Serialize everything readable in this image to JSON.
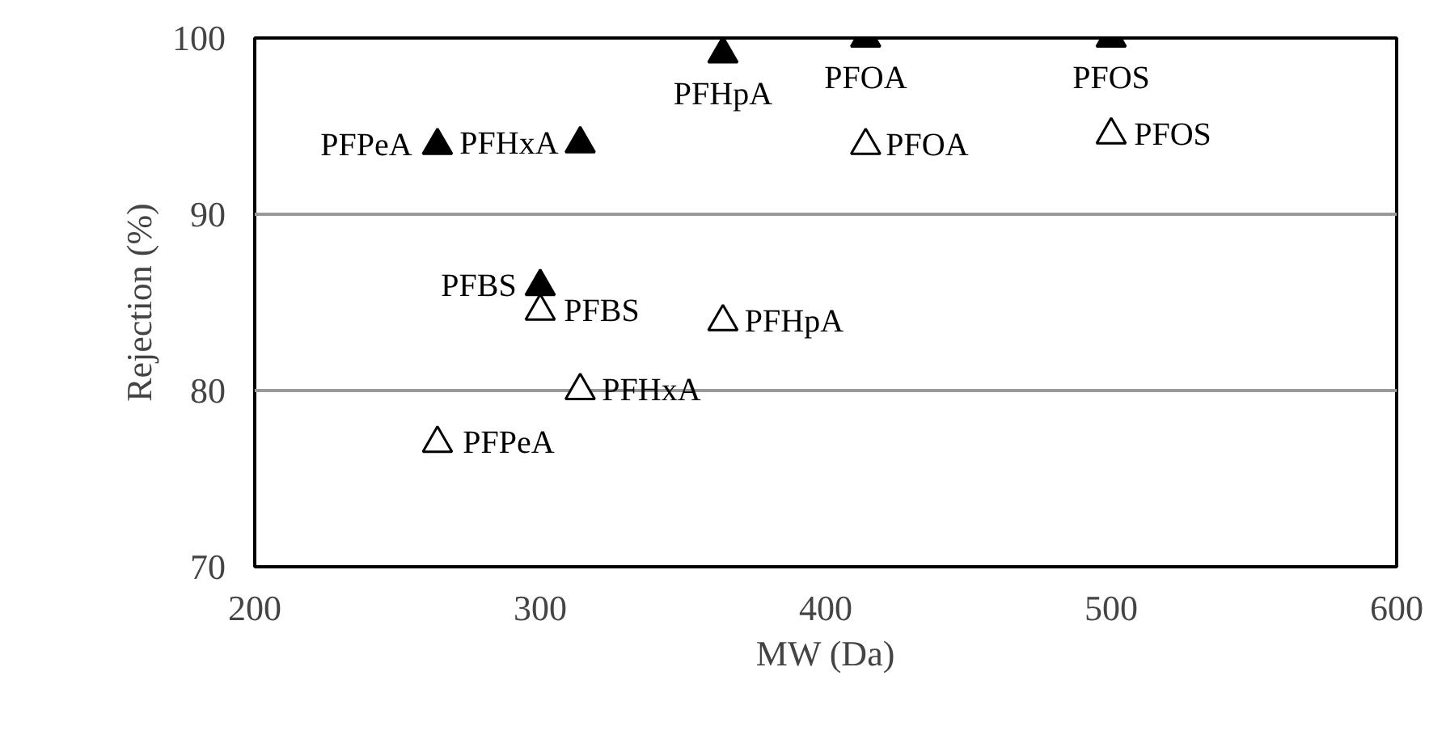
{
  "chart_data": {
    "type": "scatter",
    "xlabel": "MW (Da)",
    "ylabel": "Rejection (%)",
    "xlim": [
      200,
      600
    ],
    "xticks": [
      200,
      300,
      400,
      500,
      600
    ],
    "ylim": [
      70,
      100
    ],
    "yticks": [
      70,
      80,
      90,
      100
    ],
    "grid": "y",
    "marker": "triangle",
    "series": [
      {
        "color": "#000000",
        "x": [
          264,
          314,
          364,
          414,
          500,
          300
        ],
        "values": [
          93.9,
          94,
          99.1,
          100,
          100,
          85.9
        ],
        "value_labels": [
          "PFPeA",
          "PFHxA",
          "PFHpA",
          "PFOA",
          "PFOS",
          "PFBS"
        ]
      },
      {
        "color": "#ffffff",
        "x": [
          300,
          364,
          314,
          264,
          414,
          500
        ],
        "values": [
          84.5,
          83.9,
          80,
          77,
          93.9,
          94.5
        ],
        "value_labels": [
          "PFBS",
          "PFHpA",
          "PFHxA",
          "PFPeA",
          "PFOA",
          "PFOS"
        ]
      }
    ]
  }
}
